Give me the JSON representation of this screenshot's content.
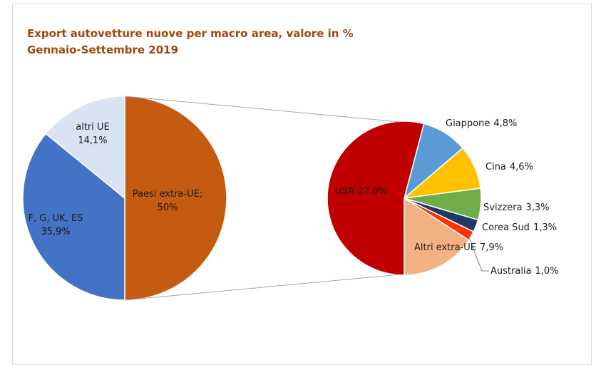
{
  "chart_data": [
    {
      "type": "pie",
      "title": "Export autovetture nuove per macro area, valore in %",
      "subtitle": "Gennaio-Settembre 2019",
      "categories": [
        "Paesi extra-UE;",
        "F, G, UK, ES",
        "altri UE"
      ],
      "values": [
        50,
        35.9,
        14.1
      ],
      "value_labels": [
        "50%",
        "35,9%",
        "14,1%"
      ],
      "colors": [
        "#c55a11",
        "#4472c4",
        "#dae3f3"
      ]
    },
    {
      "type": "pie",
      "categories": [
        "Giappone",
        "Cina",
        "Svizzera",
        "Corea Sud",
        "Australia",
        "Altri extra-UE",
        "USA"
      ],
      "values": [
        4.8,
        4.6,
        3.3,
        1.3,
        1.0,
        7.9,
        27.0
      ],
      "value_labels": [
        "4,8%",
        "4,6%",
        "3,3%",
        "1,3%",
        "1,0%",
        "7,9%",
        "27,0%"
      ],
      "colors": [
        "#5b9bd5",
        "#ffc000",
        "#70ad47",
        "#1f3864",
        "#ff3300",
        "#f4b183",
        "#c00000"
      ]
    }
  ]
}
